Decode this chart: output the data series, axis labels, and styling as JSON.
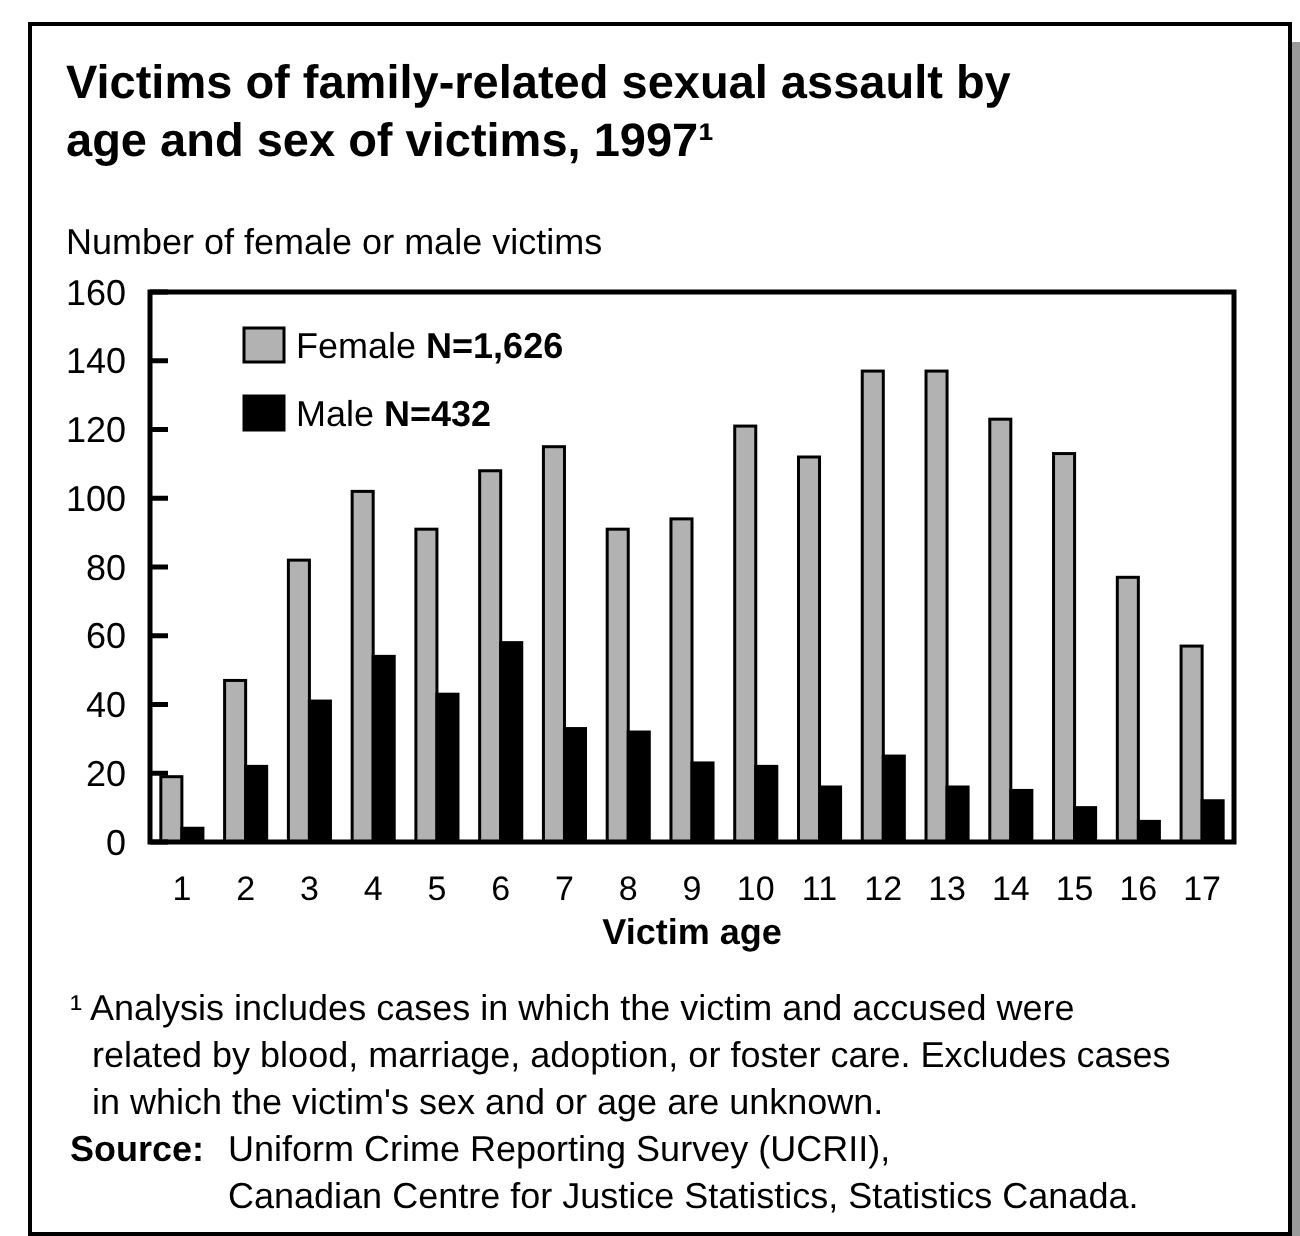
{
  "chart_data": {
    "type": "bar",
    "title": "Victims of family-related sexual assault by\nage and sex of victims, 1997¹",
    "ylabel": "Number of female or male victims",
    "xlabel": "Victim age",
    "categories": [
      "1",
      "2",
      "3",
      "4",
      "5",
      "6",
      "7",
      "8",
      "9",
      "10",
      "11",
      "12",
      "13",
      "14",
      "15",
      "16",
      "17"
    ],
    "series": [
      {
        "name": "Female N=1,626",
        "color": "#b2b2b2",
        "values": [
          19,
          47,
          82,
          102,
          91,
          108,
          115,
          91,
          94,
          121,
          112,
          137,
          137,
          123,
          113,
          77,
          57
        ]
      },
      {
        "name": "Male N=432",
        "color": "#000000",
        "values": [
          4,
          22,
          41,
          54,
          43,
          58,
          33,
          32,
          23,
          22,
          16,
          25,
          16,
          15,
          10,
          6,
          12
        ]
      }
    ],
    "ylim": [
      0,
      160
    ],
    "yticks": [
      0,
      20,
      40,
      60,
      80,
      100,
      120,
      140,
      160
    ],
    "legend": "top left",
    "annotations": [
      "¹ Analysis includes cases in which the victim and accused were\nrelated by blood, marriage, adoption, or foster care. Excludes cases\nin which the victim's sex and or age are unknown.",
      "Source: Uniform Crime Reporting Survey (UCRII),\nCanadian Centre for Justice Statistics, Statistics Canada."
    ]
  }
}
